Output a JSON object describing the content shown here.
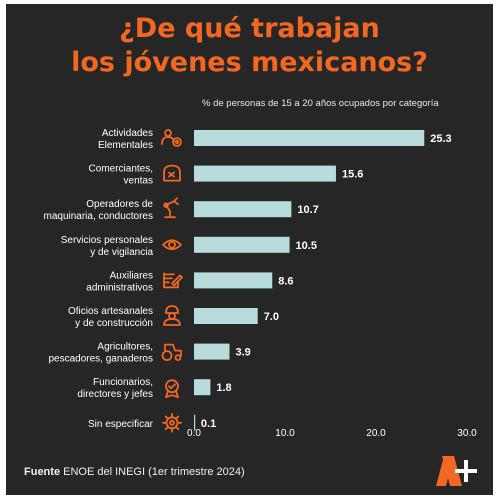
{
  "title_line1": "¿De qué trabajan",
  "title_line2": "los jóvenes mexicanos?",
  "subtitle": "% de personas de 15 a 20 años ocupados por categoría",
  "footer": {
    "label": "Fuente",
    "text": "ENOE del INEGI (1er trimestre 2024)"
  },
  "colors": {
    "accent": "#f26722",
    "bar": "#b8dbdc",
    "background": "#262626",
    "text": "#ffffff"
  },
  "chart_data": {
    "type": "bar",
    "orientation": "horizontal",
    "categories": [
      [
        "Actividades",
        "Elementales"
      ],
      [
        "Comerciantes,",
        "ventas"
      ],
      [
        "Operadores de",
        "maquinaria, conductores"
      ],
      [
        "Servicios personales",
        "y de vigilancia"
      ],
      [
        "Auxiliares",
        "administrativos"
      ],
      [
        "Oficios artesanales",
        "y de construcción"
      ],
      [
        "Agricultores,",
        "pescadores, ganaderos"
      ],
      [
        "Funcionarios,",
        "directores y jefes"
      ],
      [
        "Sin especificar"
      ]
    ],
    "icons": [
      "people-gear-icon",
      "sales-icon",
      "robot-arm-icon",
      "eye-icon",
      "edit-icon",
      "worker-icon",
      "tractor-icon",
      "medal-icon",
      "gear-icon"
    ],
    "values": [
      25.3,
      15.6,
      10.7,
      10.5,
      8.6,
      7.0,
      3.9,
      1.8,
      0.1
    ],
    "value_labels": [
      "25.3",
      "15.6",
      "10.7",
      "10.5",
      "8.6",
      "7.0",
      "3.9",
      "1.8",
      "0.1"
    ],
    "xlim": [
      0,
      30
    ],
    "xticks": [
      "0.0",
      "10.0",
      "20.0",
      "30.0"
    ],
    "grid": false
  }
}
